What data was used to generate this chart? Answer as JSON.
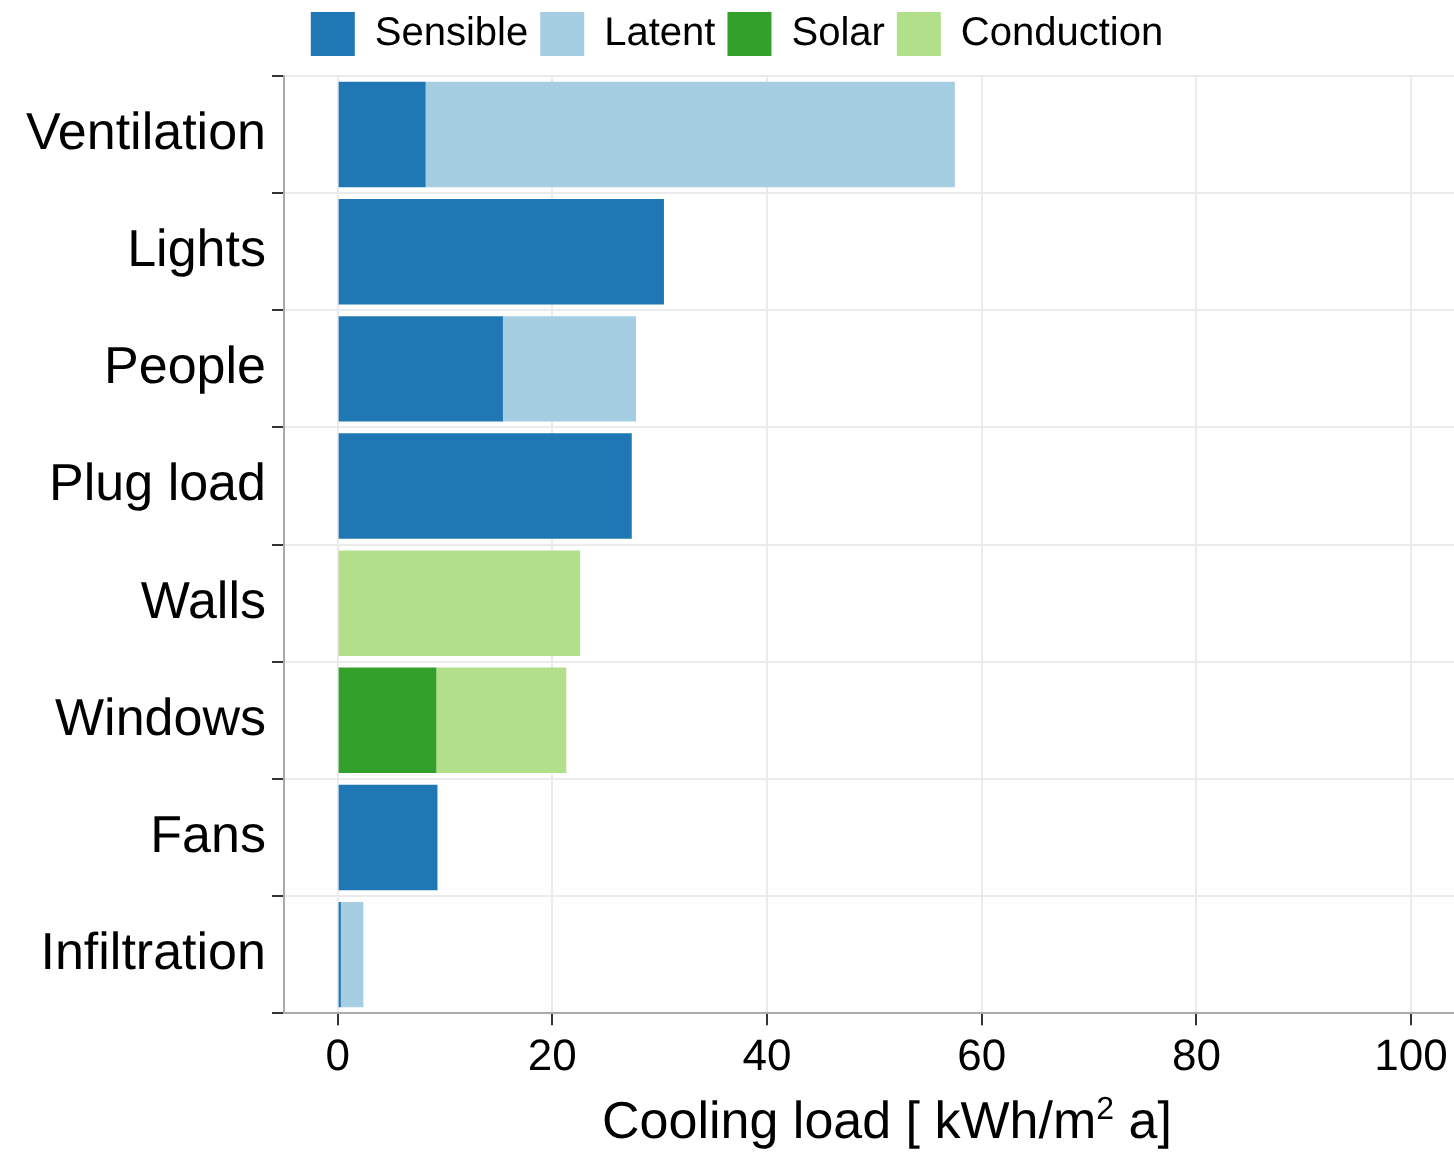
{
  "chart_data": {
    "type": "bar",
    "orientation": "horizontal",
    "stacked": true,
    "categories": [
      "Ventilation",
      "Lights",
      "People",
      "Plug load",
      "Walls",
      "Windows",
      "Fans",
      "Infiltration"
    ],
    "series": [
      {
        "name": "Sensible",
        "color": "#1f78b4",
        "values": [
          8.2,
          30.4,
          15.4,
          27.4,
          null,
          null,
          9.3,
          0.3
        ]
      },
      {
        "name": "Latent",
        "color": "#a6cee3",
        "values": [
          49.3,
          null,
          12.4,
          null,
          null,
          null,
          null,
          2.1
        ]
      },
      {
        "name": "Solar",
        "color": "#33a02c",
        "values": [
          null,
          null,
          null,
          null,
          null,
          9.2,
          null,
          null
        ]
      },
      {
        "name": "Conduction",
        "color": "#b2df8a",
        "values": [
          null,
          null,
          null,
          null,
          22.6,
          12.1,
          null,
          null
        ]
      }
    ],
    "xlabel": "Cooling load [ kWh/m$^{2}$ a]",
    "xlim": [
      -5,
      104
    ],
    "xticks": [
      0,
      20,
      40,
      60,
      80,
      100
    ],
    "grid": true,
    "legend": "top"
  }
}
